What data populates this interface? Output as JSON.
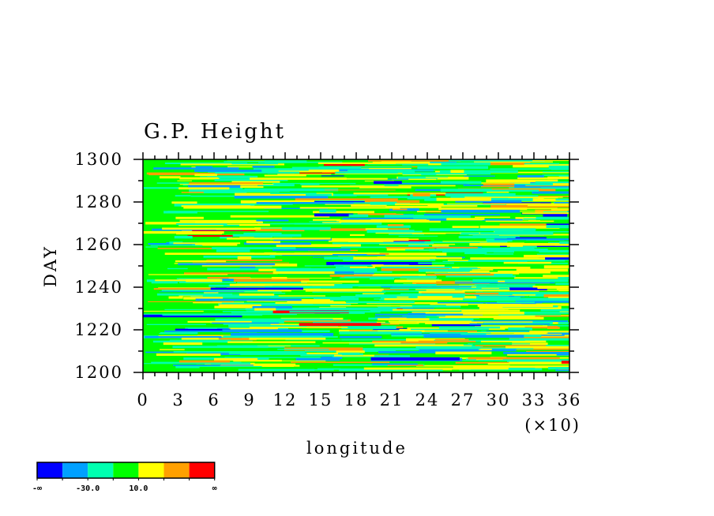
{
  "chart_data": {
    "type": "heatmap",
    "title": "G.P. Height",
    "xlabel": "longitude",
    "ylabel": "DAY",
    "x_scale_label": "(×10)",
    "xlim": [
      0,
      360
    ],
    "ylim": [
      1200,
      1300
    ],
    "x_tick_labels": [
      "0",
      "3",
      "6",
      "9",
      "12",
      "15",
      "18",
      "21",
      "24",
      "27",
      "30",
      "33",
      "36"
    ],
    "y_tick_labels": [
      "1200",
      "1220",
      "1240",
      "1260",
      "1280",
      "1300"
    ],
    "y_ticks": [
      1200,
      1220,
      1240,
      1260,
      1280,
      1300
    ],
    "colorbar": {
      "placement": "bottom-left",
      "colors": [
        "#0000ff",
        "#00a0ff",
        "#00ffb0",
        "#00ff00",
        "#ffff00",
        "#ffa000",
        "#ff0000"
      ],
      "labels": [
        "-∞",
        "-30.0",
        "10.0",
        "∞"
      ]
    }
  }
}
